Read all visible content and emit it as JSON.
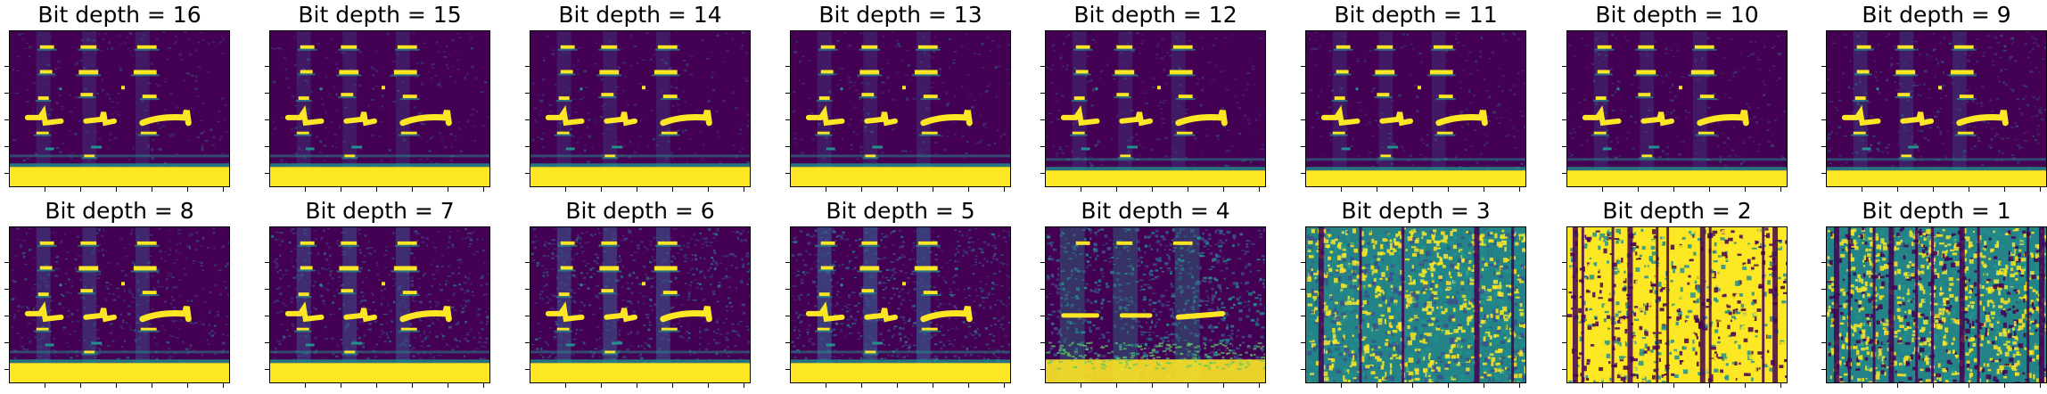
{
  "panels": [
    {
      "title": "Bit depth = 16",
      "bits": 16
    },
    {
      "title": "Bit depth = 15",
      "bits": 15
    },
    {
      "title": "Bit depth = 14",
      "bits": 14
    },
    {
      "title": "Bit depth = 13",
      "bits": 13
    },
    {
      "title": "Bit depth = 12",
      "bits": 12
    },
    {
      "title": "Bit depth = 11",
      "bits": 11
    },
    {
      "title": "Bit depth = 10",
      "bits": 10
    },
    {
      "title": "Bit depth = 9",
      "bits": 9
    },
    {
      "title": "Bit depth = 8",
      "bits": 8
    },
    {
      "title": "Bit depth = 7",
      "bits": 7
    },
    {
      "title": "Bit depth = 6",
      "bits": 6
    },
    {
      "title": "Bit depth = 5",
      "bits": 5
    },
    {
      "title": "Bit depth = 4",
      "bits": 4
    },
    {
      "title": "Bit depth = 3",
      "bits": 3
    },
    {
      "title": "Bit depth = 2",
      "bits": 2
    },
    {
      "title": "Bit depth = 1",
      "bits": 1
    }
  ],
  "colors": {
    "background": "#440154",
    "low": "#3b528b",
    "mid": "#21918c",
    "high": "#5ec962",
    "peak": "#fde725"
  }
}
